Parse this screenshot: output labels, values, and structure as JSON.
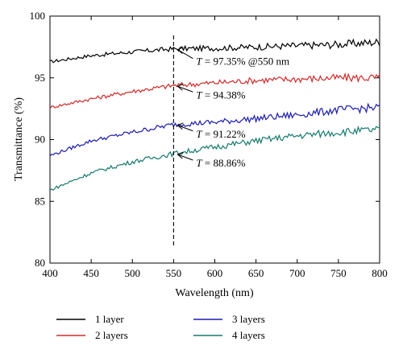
{
  "chart_data": {
    "type": "line",
    "xlabel": "Wavelength (nm)",
    "ylabel": "Transmittance (%)",
    "xlim": [
      400,
      800
    ],
    "ylim": [
      80,
      100
    ],
    "xticks": [
      400,
      450,
      500,
      550,
      600,
      650,
      700,
      750,
      800
    ],
    "yticks": [
      80,
      85,
      90,
      95,
      100
    ],
    "x": [
      400,
      450,
      500,
      550,
      600,
      650,
      700,
      750,
      800
    ],
    "series": [
      {
        "name": "1 layer",
        "color": "#000000",
        "values": [
          96.3,
          96.8,
          97.1,
          97.35,
          97.4,
          97.5,
          97.6,
          97.7,
          97.9
        ]
      },
      {
        "name": "2 layers",
        "color": "#d42a2a",
        "values": [
          92.6,
          93.3,
          93.9,
          94.38,
          94.6,
          94.8,
          94.9,
          95.0,
          95.0
        ]
      },
      {
        "name": "3 layers",
        "color": "#1b1bb0",
        "values": [
          88.7,
          89.9,
          90.6,
          91.22,
          91.4,
          91.7,
          92.0,
          92.4,
          92.6
        ]
      },
      {
        "name": "4 layers",
        "color": "#157a6e",
        "values": [
          85.9,
          87.3,
          88.2,
          88.86,
          89.4,
          89.9,
          90.3,
          90.6,
          90.8
        ]
      }
    ],
    "marker_line": {
      "x": 550
    },
    "annotations": [
      {
        "T": "T",
        "text": " = 97.35% @550 nm",
        "x": 550,
        "y": 97.35
      },
      {
        "T": "T",
        "text": " = 94.38%",
        "x": 550,
        "y": 94.38
      },
      {
        "T": "T",
        "text": " = 91.22%",
        "x": 550,
        "y": 91.22
      },
      {
        "T": "T",
        "text": " = 88.86%",
        "x": 550,
        "y": 88.86
      }
    ],
    "legend_position": "bottom"
  }
}
